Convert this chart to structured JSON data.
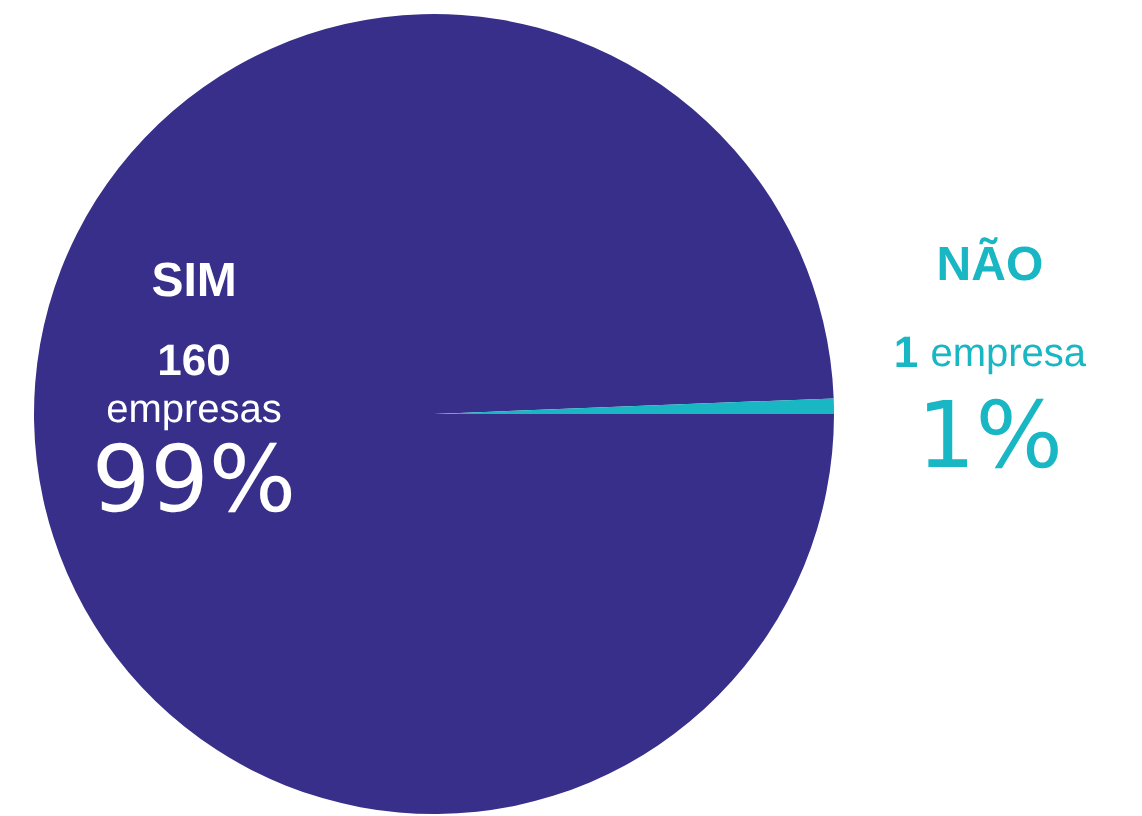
{
  "chart_data": {
    "type": "pie",
    "categories": [
      "SIM",
      "NÃO"
    ],
    "values": [
      160,
      1
    ],
    "colors": [
      "#372f8a",
      "#19b6c3"
    ],
    "value_labels": [
      "160 empresas",
      "1 empresa"
    ],
    "annotations": [
      "99%",
      "1%"
    ],
    "legend": false
  }
}
